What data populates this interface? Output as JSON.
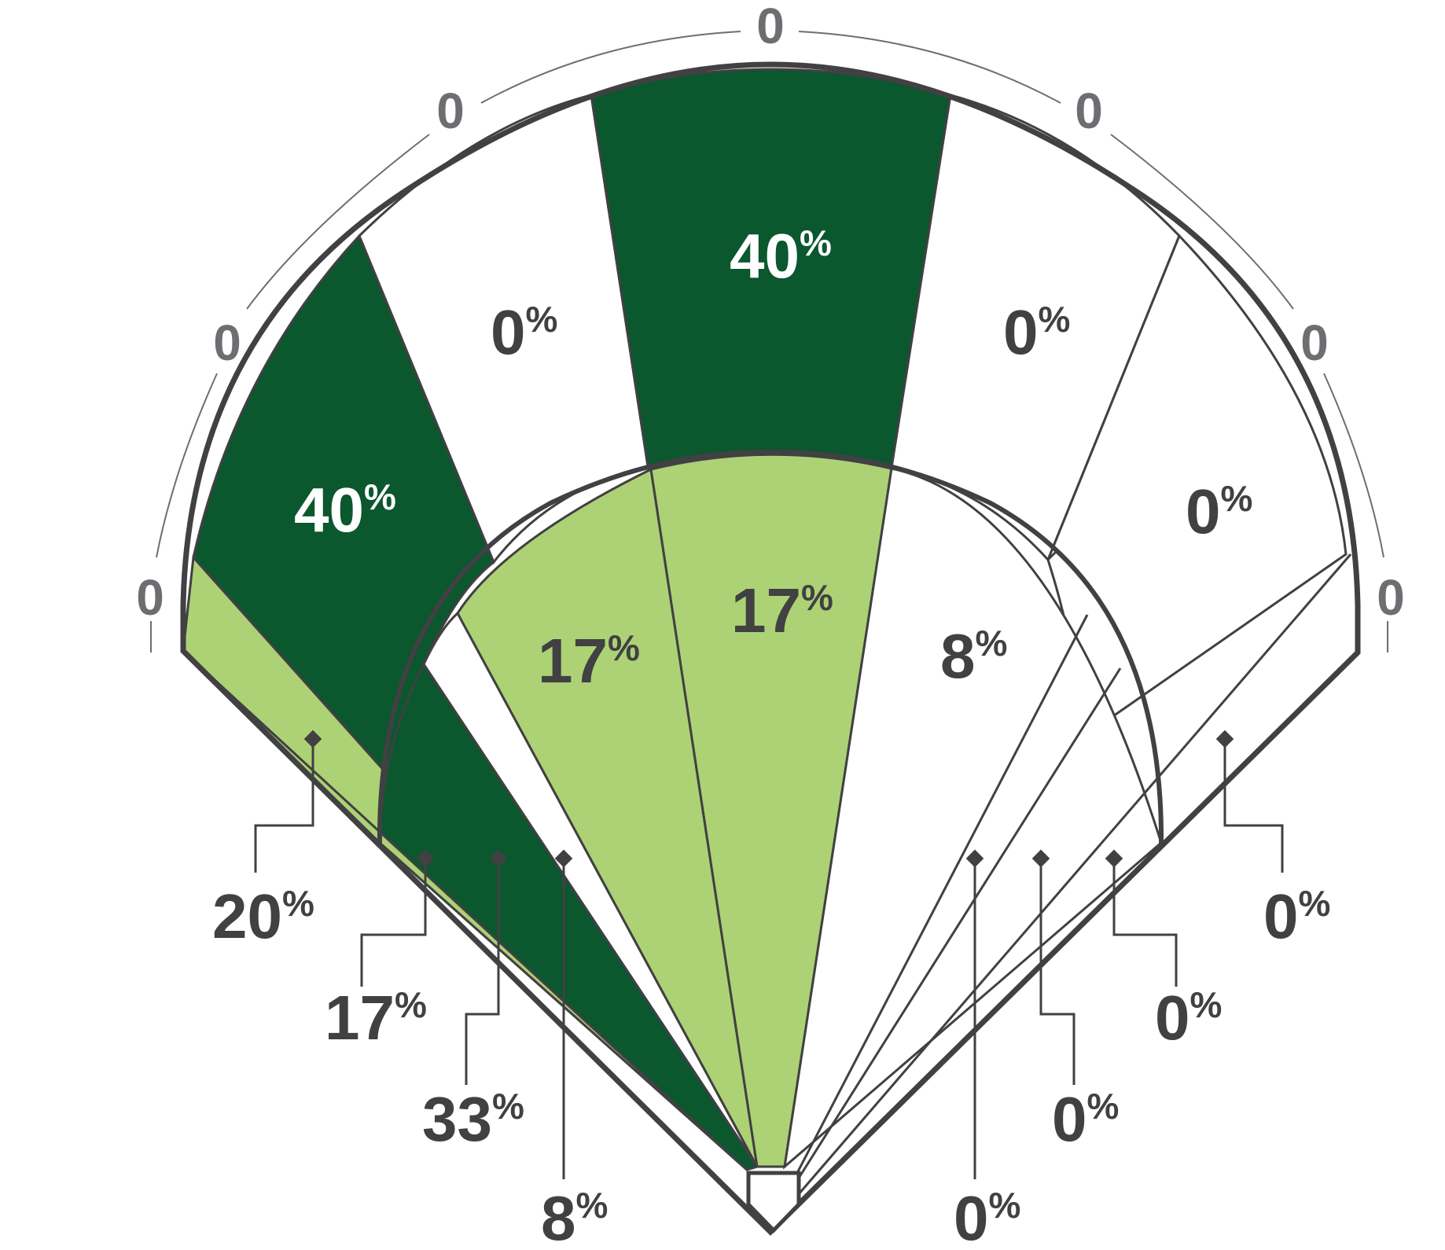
{
  "colors": {
    "dark_green": "#0b572e",
    "light_green": "#acd275",
    "outline": "#414042",
    "text_dark": "#414042",
    "text_light": "#ffffff",
    "arc_text": "#6d6e71"
  },
  "percent_symbol": "%",
  "outer_arc_values": [
    "0",
    "0",
    "0",
    "0",
    "0",
    "0",
    "0"
  ],
  "outfield": [
    {
      "value": "40",
      "fill": "dark"
    },
    {
      "value": "0",
      "fill": "white"
    },
    {
      "value": "40",
      "fill": "dark"
    },
    {
      "value": "0",
      "fill": "white"
    },
    {
      "value": "0",
      "fill": "white"
    }
  ],
  "infield": [
    {
      "value": "17",
      "fill": "light"
    },
    {
      "value": "17",
      "fill": "light"
    },
    {
      "value": "8",
      "fill": "white"
    }
  ],
  "left_callouts": [
    {
      "value": "20",
      "fill": "light"
    },
    {
      "value": "17",
      "fill": "light"
    },
    {
      "value": "33",
      "fill": "dark"
    },
    {
      "value": "8",
      "fill": "white"
    }
  ],
  "right_callouts": [
    {
      "value": "0",
      "fill": "white"
    },
    {
      "value": "0",
      "fill": "white"
    },
    {
      "value": "0",
      "fill": "white"
    },
    {
      "value": "0",
      "fill": "white"
    }
  ]
}
